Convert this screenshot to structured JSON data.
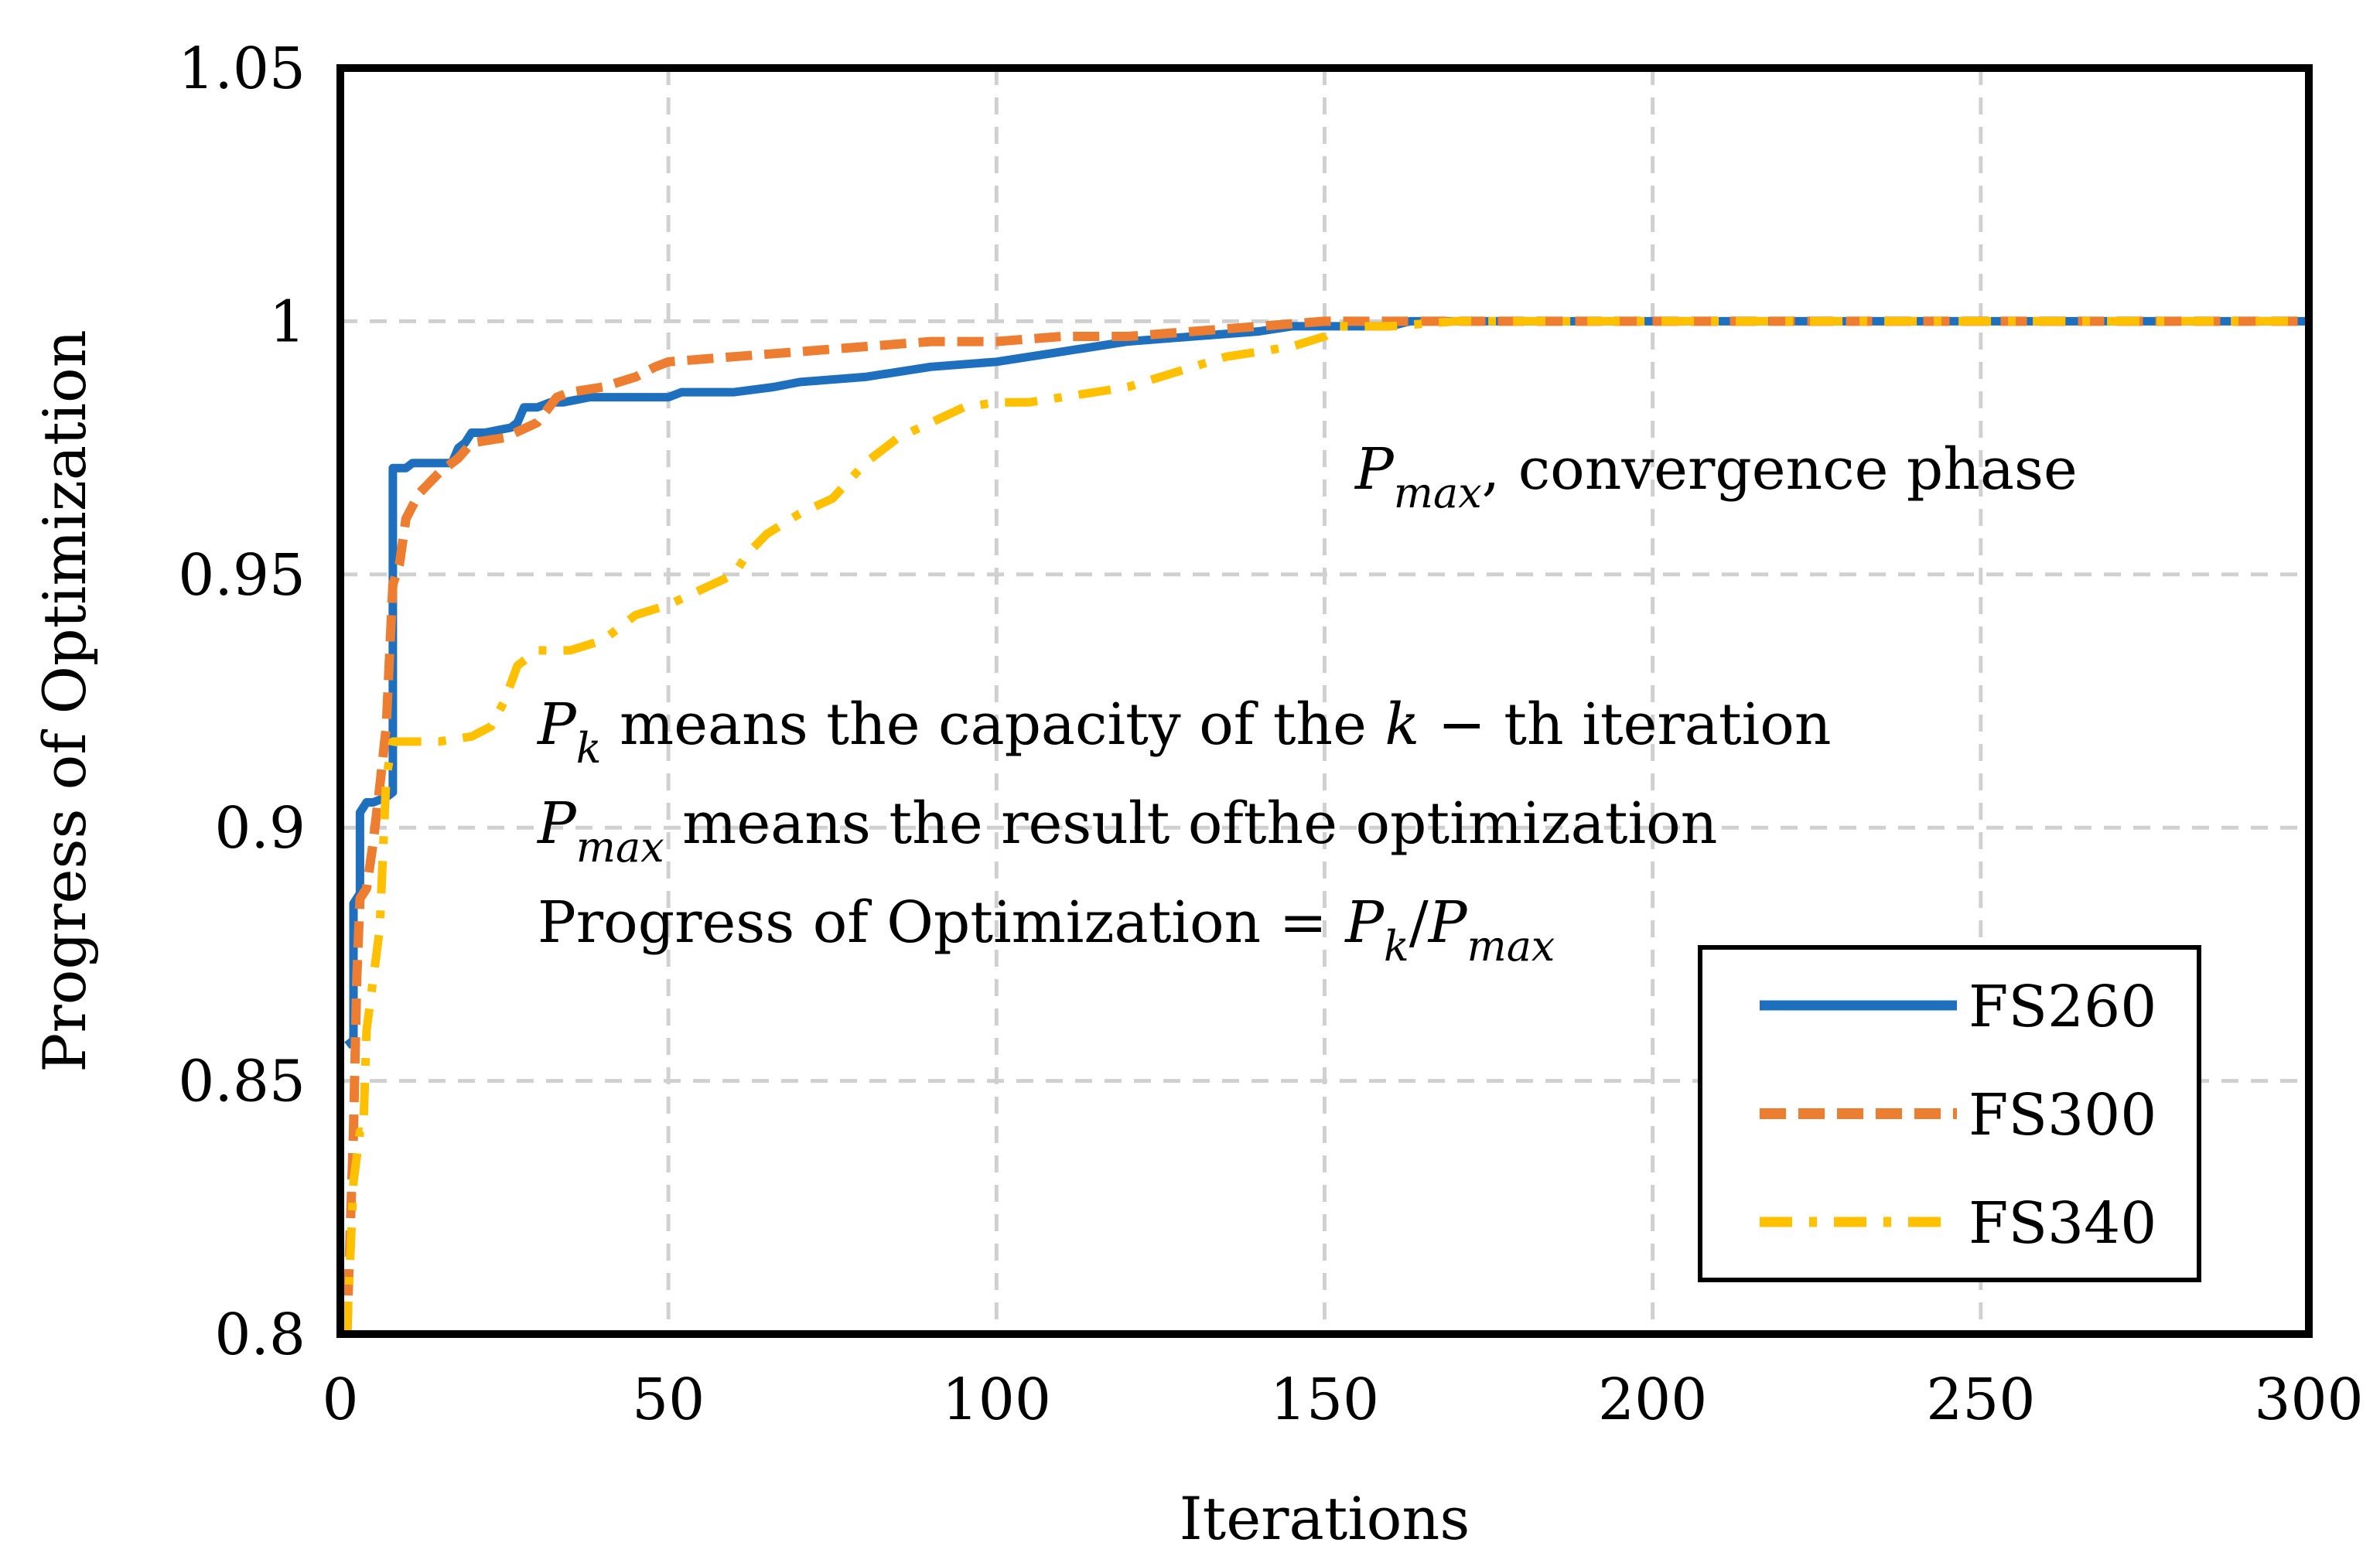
{
  "chart_data": {
    "type": "line",
    "xlabel": "Iterations",
    "ylabel": "Progress of Optimization",
    "xlim": [
      0,
      300
    ],
    "ylim": [
      0.8,
      1.05
    ],
    "xticks": [
      0,
      50,
      100,
      150,
      200,
      250,
      300
    ],
    "xtick_labels": [
      "0",
      "50",
      "100",
      "150",
      "200",
      "250",
      "300"
    ],
    "yticks": [
      0.8,
      0.85,
      0.9,
      0.95,
      1.0,
      1.05
    ],
    "ytick_labels": [
      "0.8",
      "0.85",
      "0.9",
      "0.95",
      "1",
      "1.05"
    ],
    "grid": true,
    "legend_position": "bottom-right",
    "series": [
      {
        "name": "FS260",
        "color": "#1F6FBF",
        "style": "solid",
        "x": [
          1,
          2,
          2,
          3,
          3,
          4,
          5,
          7,
          8,
          8,
          9,
          10,
          11,
          15,
          17,
          18,
          19,
          20,
          22,
          26,
          27,
          28,
          30,
          32,
          34,
          38,
          50,
          52,
          60,
          66,
          70,
          80,
          90,
          100,
          110,
          120,
          130,
          140,
          145,
          150,
          155,
          160,
          163,
          170,
          200,
          250,
          300
        ],
        "y": [
          0.857,
          0.858,
          0.885,
          0.887,
          0.903,
          0.905,
          0.905,
          0.906,
          0.907,
          0.971,
          0.971,
          0.971,
          0.972,
          0.972,
          0.972,
          0.975,
          0.976,
          0.978,
          0.978,
          0.979,
          0.98,
          0.983,
          0.983,
          0.984,
          0.984,
          0.985,
          0.985,
          0.986,
          0.986,
          0.987,
          0.988,
          0.989,
          0.991,
          0.992,
          0.994,
          0.996,
          0.997,
          0.998,
          0.999,
          0.999,
          0.999,
          0.999,
          1.0,
          1.0,
          1.0,
          1.0,
          1.0
        ]
      },
      {
        "name": "FS300",
        "color": "#ED7D31",
        "style": "dashed",
        "x": [
          1,
          1.5,
          2,
          2.5,
          3,
          4,
          5,
          6,
          7,
          8,
          9,
          10,
          12,
          15,
          18,
          20,
          25,
          30,
          33,
          35,
          40,
          45,
          48,
          50,
          60,
          70,
          80,
          90,
          100,
          110,
          120,
          130,
          140,
          145,
          150,
          160,
          170,
          200,
          250,
          300
        ],
        "y": [
          0.8,
          0.82,
          0.84,
          0.87,
          0.886,
          0.888,
          0.897,
          0.908,
          0.92,
          0.948,
          0.952,
          0.961,
          0.966,
          0.97,
          0.973,
          0.976,
          0.977,
          0.98,
          0.985,
          0.986,
          0.987,
          0.989,
          0.991,
          0.992,
          0.993,
          0.994,
          0.995,
          0.996,
          0.996,
          0.997,
          0.997,
          0.998,
          0.999,
          0.9995,
          1.0,
          1.0,
          1.0,
          1.0,
          1.0,
          1.0
        ]
      },
      {
        "name": "FS340",
        "color": "#FFC000",
        "style": "dashdot",
        "x": [
          1,
          2,
          3,
          3.5,
          4,
          5,
          6,
          7,
          8,
          10,
          15,
          20,
          23,
          25,
          27,
          30,
          35,
          40,
          45,
          50,
          55,
          60,
          62,
          65,
          70,
          75,
          80,
          85,
          90,
          95,
          100,
          105,
          110,
          115,
          120,
          125,
          130,
          135,
          140,
          145,
          150,
          152,
          155,
          160,
          170,
          200,
          250,
          300
        ],
        "y": [
          0.8,
          0.83,
          0.84,
          0.84,
          0.86,
          0.87,
          0.88,
          0.91,
          0.917,
          0.917,
          0.917,
          0.918,
          0.92,
          0.925,
          0.932,
          0.935,
          0.935,
          0.937,
          0.942,
          0.944,
          0.947,
          0.95,
          0.954,
          0.958,
          0.962,
          0.965,
          0.972,
          0.977,
          0.98,
          0.983,
          0.984,
          0.984,
          0.985,
          0.986,
          0.987,
          0.989,
          0.991,
          0.993,
          0.994,
          0.995,
          0.997,
          0.999,
          0.999,
          0.999,
          1.0,
          1.0,
          1.0,
          1.0
        ]
      }
    ],
    "annotations": {
      "convergence": {
        "base": "P",
        "sub": "max",
        "rest": ", convergence phase"
      },
      "line1": {
        "base": "P",
        "sub": "k",
        "text_a": " means the capacity of the ",
        "k": "k",
        "text_b": " − th iteration"
      },
      "line2": {
        "base": "P",
        "sub": "max",
        "text": " means the result ofthe optimization"
      },
      "line3": {
        "prefix": "Progress of Optimization = ",
        "base1": "P",
        "sub1": "k",
        "slash": "/",
        "base2": "P",
        "sub2": "max"
      }
    }
  }
}
